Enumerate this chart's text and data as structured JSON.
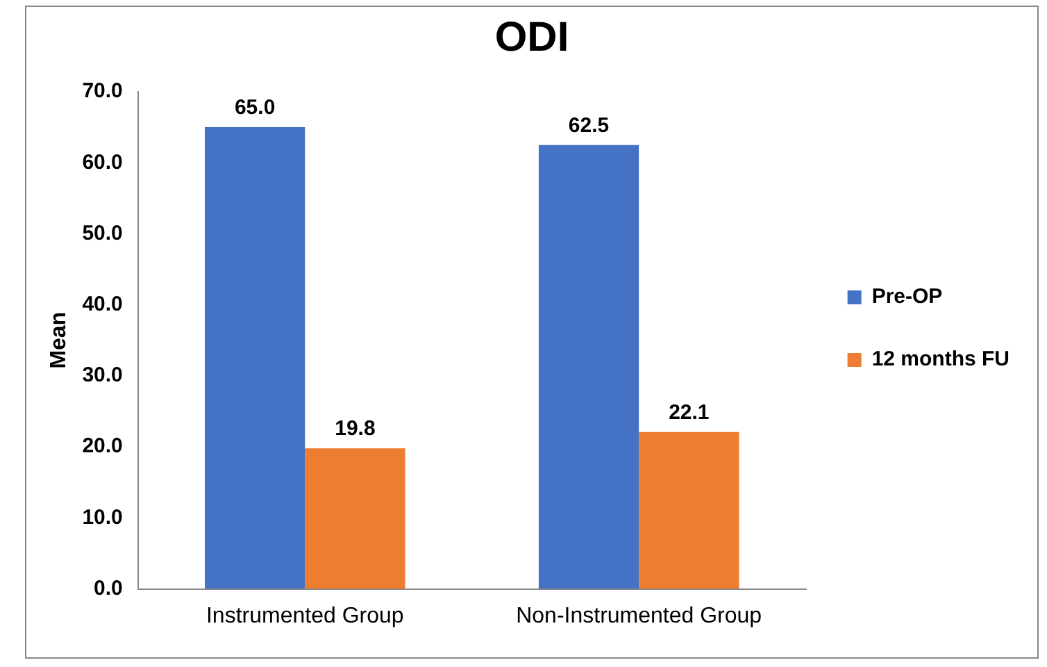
{
  "chart_data": {
    "type": "bar",
    "title": "ODI",
    "ylabel": "Mean",
    "categories": [
      "Instrumented Group",
      "Non-Instrumented Group"
    ],
    "series": [
      {
        "name": "Pre-OP",
        "color": "#4472c4",
        "values": [
          65.0,
          62.5
        ],
        "value_labels": [
          "65.0",
          "62.5"
        ]
      },
      {
        "name": "12 months FU",
        "color": "#ed7d31",
        "values": [
          19.8,
          22.1
        ],
        "value_labels": [
          "19.8",
          "22.1"
        ]
      }
    ],
    "ylim": [
      0,
      70
    ],
    "yticks": [
      {
        "value": 0,
        "label": "0.0"
      },
      {
        "value": 10,
        "label": "10.0"
      },
      {
        "value": 20,
        "label": "20.0"
      },
      {
        "value": 30,
        "label": "30.0"
      },
      {
        "value": 40,
        "label": "40.0"
      },
      {
        "value": 50,
        "label": "50.0"
      },
      {
        "value": 60,
        "label": "60.0"
      },
      {
        "value": 70,
        "label": "70.0"
      }
    ],
    "grid": false,
    "legend": "right"
  }
}
